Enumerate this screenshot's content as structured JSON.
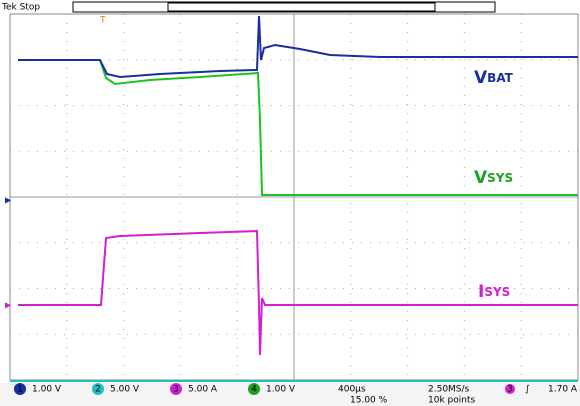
{
  "header": {
    "status": "Tek Stop"
  },
  "traces": [
    {
      "label_main": "V",
      "label_sub": "BAT"
    },
    {
      "label_main": "V",
      "label_sub": "SYS"
    },
    {
      "label_main": "I",
      "label_sub": "SYS"
    }
  ],
  "footer": {
    "channels": [
      {
        "id": "1",
        "scale": "1.00 V"
      },
      {
        "id": "2",
        "scale": "5.00 V"
      },
      {
        "id": "3",
        "scale": "5.00 A"
      },
      {
        "id": "4",
        "scale": "1.00 V"
      }
    ],
    "timebase": "400µs",
    "trigger_pos": "15.00 %",
    "sample_rate": "2.50MS/s",
    "record": "10k points",
    "trigger": {
      "source": "3",
      "slope": "∫",
      "level": "1.70 A"
    }
  }
}
